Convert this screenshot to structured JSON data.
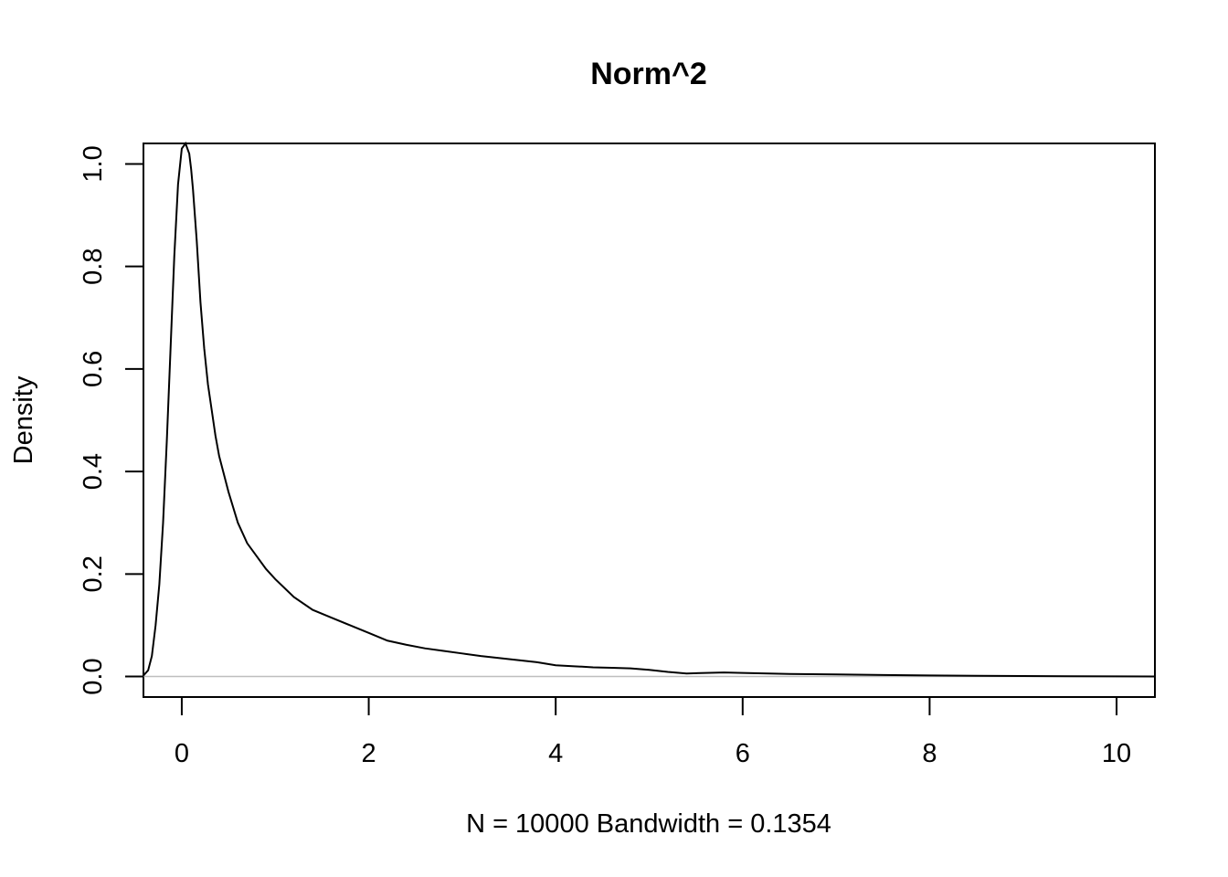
{
  "chart_data": {
    "type": "line",
    "title": "Norm^2",
    "xlabel": "N = 10000   Bandwidth = 0.1354",
    "ylabel": "Density",
    "xlim": [
      -0.41,
      10.41
    ],
    "ylim": [
      -0.04,
      1.04
    ],
    "x_ticks": [
      0,
      2,
      4,
      6,
      8,
      10
    ],
    "y_ticks": [
      0.0,
      0.2,
      0.4,
      0.6,
      0.8,
      1.0
    ],
    "x_tick_labels": [
      "0",
      "2",
      "4",
      "6",
      "8",
      "10"
    ],
    "y_tick_labels": [
      "0.0",
      "0.2",
      "0.4",
      "0.6",
      "0.8",
      "1.0"
    ],
    "baseline": 0,
    "grid": false,
    "series": [
      {
        "x": [
          -0.41,
          -0.36,
          -0.32,
          -0.28,
          -0.24,
          -0.2,
          -0.16,
          -0.12,
          -0.08,
          -0.04,
          0.0,
          0.04,
          0.08,
          0.1,
          0.12,
          0.16,
          0.2,
          0.24,
          0.28,
          0.32,
          0.36,
          0.4,
          0.5,
          0.6,
          0.7,
          0.8,
          0.9,
          1.0,
          1.2,
          1.4,
          1.6,
          1.8,
          2.0,
          2.2,
          2.4,
          2.6,
          2.8,
          3.0,
          3.2,
          3.4,
          3.6,
          3.8,
          4.0,
          4.2,
          4.4,
          4.6,
          4.8,
          5.0,
          5.2,
          5.4,
          5.6,
          5.8,
          6.0,
          6.5,
          7.0,
          7.5,
          8.0,
          8.5,
          9.0,
          9.5,
          10.0,
          10.41
        ],
        "y": [
          0.002,
          0.012,
          0.04,
          0.1,
          0.18,
          0.3,
          0.46,
          0.64,
          0.82,
          0.96,
          1.03,
          1.04,
          1.02,
          0.99,
          0.95,
          0.85,
          0.73,
          0.64,
          0.57,
          0.52,
          0.47,
          0.43,
          0.36,
          0.3,
          0.26,
          0.235,
          0.21,
          0.19,
          0.155,
          0.13,
          0.115,
          0.1,
          0.085,
          0.07,
          0.062,
          0.055,
          0.05,
          0.045,
          0.04,
          0.036,
          0.032,
          0.028,
          0.022,
          0.02,
          0.018,
          0.017,
          0.016,
          0.013,
          0.009,
          0.006,
          0.007,
          0.008,
          0.007,
          0.005,
          0.004,
          0.003,
          0.002,
          0.0015,
          0.001,
          0.0005,
          0.0003,
          0.0001
        ]
      }
    ]
  }
}
